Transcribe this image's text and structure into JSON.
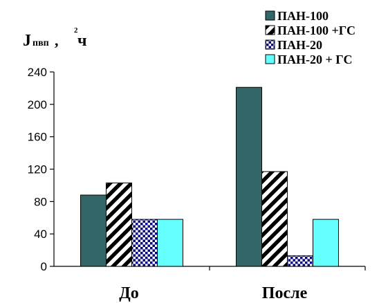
{
  "chart_data": {
    "type": "bar",
    "title": "",
    "ylabel": {
      "main": "J",
      "subscript": "пвп",
      "comma": ",",
      "superscript": "2",
      "unit": "ч"
    },
    "xlabel": "",
    "categories": [
      "До",
      "После"
    ],
    "ylim": [
      0,
      240
    ],
    "yticks": [
      "0",
      "40",
      "80",
      "120",
      "160",
      "200",
      "240"
    ],
    "grid": false,
    "legend_position": "top-right",
    "series": [
      {
        "name": "ПАН-100",
        "values": [
          88,
          221
        ],
        "color": "#336666",
        "pattern": "solid"
      },
      {
        "name": "ПАН-100 +ГС",
        "values": [
          103,
          117
        ],
        "color": "#000000",
        "pattern": "diagonal-stripes"
      },
      {
        "name": "ПАН-20",
        "values": [
          58,
          13
        ],
        "color": "#000080",
        "pattern": "checker"
      },
      {
        "name": "ПАН-20 + ГС",
        "values": [
          58,
          58
        ],
        "color": "#66ffff",
        "pattern": "solid"
      }
    ]
  }
}
